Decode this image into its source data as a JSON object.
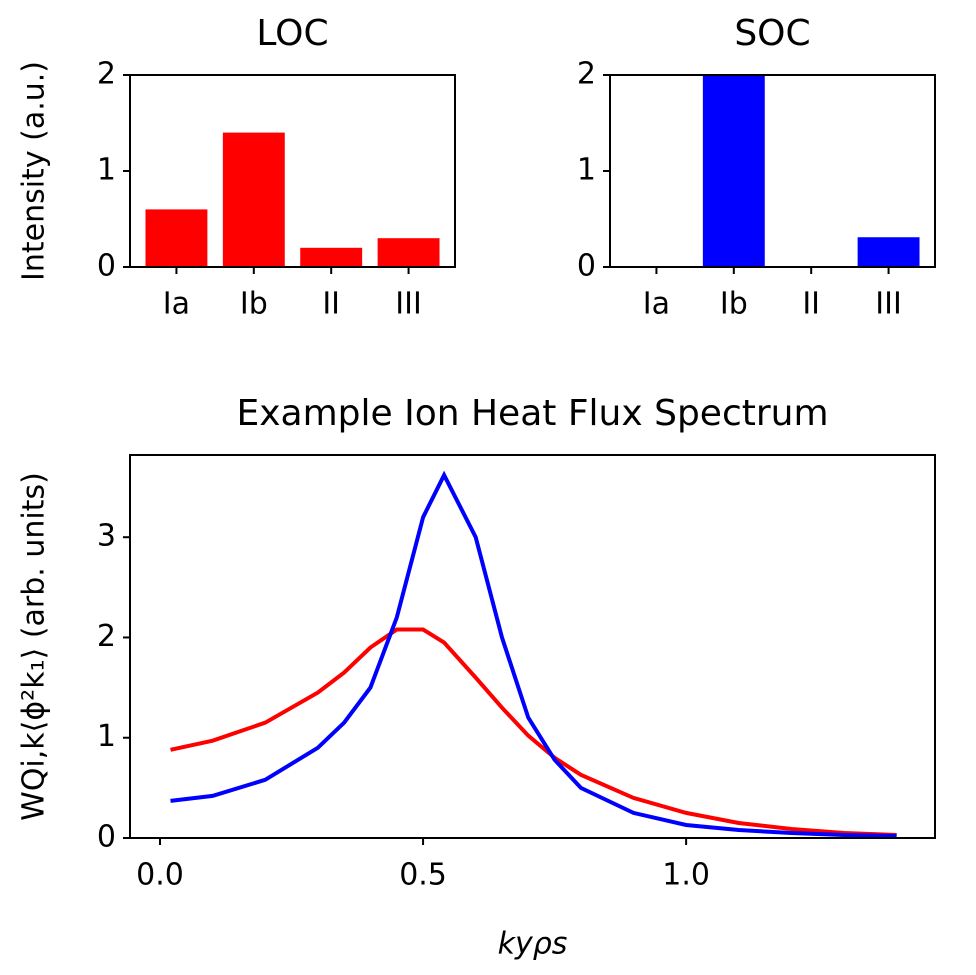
{
  "chart_data": [
    {
      "type": "bar",
      "title": "LOC",
      "y_label": "Intensity (a.u.)",
      "categories": [
        "Ia",
        "Ib",
        "II",
        "III"
      ],
      "values": [
        0.6,
        1.4,
        0.2,
        0.3
      ],
      "color": "#ff0000",
      "ylim": [
        0,
        2
      ],
      "yticks": [
        0,
        1,
        2
      ]
    },
    {
      "type": "bar",
      "title": "SOC",
      "categories": [
        "Ia",
        "Ib",
        "II",
        "III"
      ],
      "values": [
        0,
        2.0,
        0,
        0.31
      ],
      "color": "#0000ff",
      "ylim": [
        0,
        2
      ],
      "yticks": [
        0,
        1,
        2
      ]
    },
    {
      "type": "line",
      "title": "Example Ion Heat Flux Spectrum",
      "x_label": "kyρs",
      "y_label": "WQi,k⟨ϕ²k₁⟩ (arb. units)",
      "x": [
        0.02,
        0.1,
        0.2,
        0.3,
        0.35,
        0.4,
        0.45,
        0.5,
        0.54,
        0.6,
        0.65,
        0.7,
        0.75,
        0.8,
        0.9,
        1.0,
        1.1,
        1.2,
        1.3,
        1.4
      ],
      "series": [
        {
          "color": "#ff0000",
          "values": [
            0.88,
            0.97,
            1.15,
            1.45,
            1.65,
            1.9,
            2.08,
            2.08,
            1.95,
            1.6,
            1.3,
            1.02,
            0.8,
            0.63,
            0.4,
            0.25,
            0.15,
            0.09,
            0.05,
            0.03
          ]
        },
        {
          "color": "#0000ff",
          "values": [
            0.37,
            0.42,
            0.58,
            0.9,
            1.15,
            1.5,
            2.2,
            3.2,
            3.62,
            3.0,
            2.0,
            1.2,
            0.78,
            0.5,
            0.25,
            0.13,
            0.08,
            0.05,
            0.03,
            0.02
          ]
        }
      ],
      "xlim": [
        -0.057,
        1.473
      ],
      "ylim": [
        0,
        3.82
      ],
      "xticks": [
        {
          "value": 0,
          "label": "0.0"
        },
        {
          "value": 0.5,
          "label": "0.5"
        },
        {
          "value": 1,
          "label": "1.0"
        }
      ],
      "yticks": [
        0,
        1,
        2,
        3
      ]
    }
  ]
}
